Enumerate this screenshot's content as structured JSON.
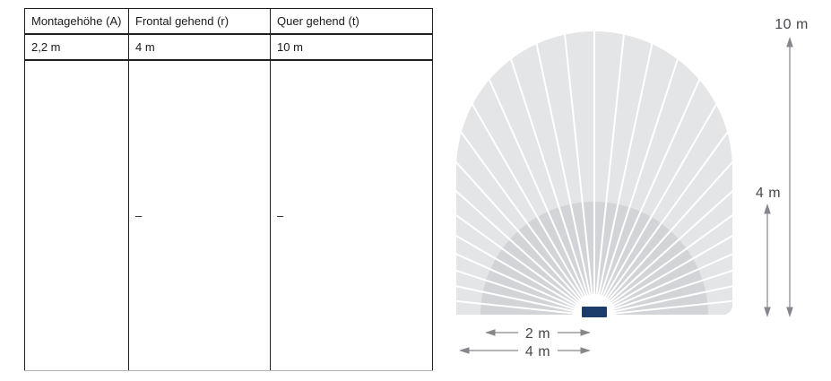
{
  "table": {
    "headers": [
      "Montagehöhe (A)",
      "Frontal gehend (r)",
      "Quer gehend (t)"
    ],
    "rows": [
      [
        "2,2 m",
        "4 m",
        "10 m"
      ],
      [
        "",
        "–",
        "–"
      ]
    ]
  },
  "diagram": {
    "labels": {
      "total_height": "10 m",
      "inner_height": "4 m",
      "inner_width": "2 m",
      "outer_width": "4 m"
    },
    "colors": {
      "outer_fan": "#e4e5e7",
      "inner_fan": "#d2d4d7",
      "sensor": "#1c3c69",
      "dimension_line": "#85878b",
      "label_text": "#46484c",
      "ray_gap": "#ffffff"
    }
  }
}
